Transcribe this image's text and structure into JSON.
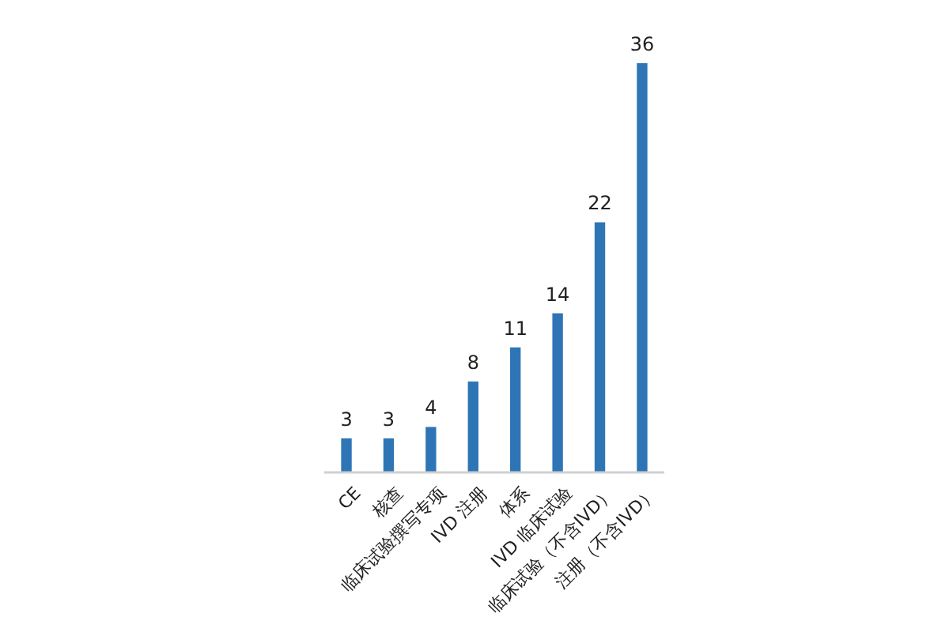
{
  "chart_data": {
    "type": "bar",
    "categories": [
      "CE",
      "核查",
      "临床试验撰写专项",
      "IVD 注册",
      "体系",
      "IVD 临床试验",
      "临床试验（不含IVD）",
      "注册（不含IVD）"
    ],
    "values": [
      3,
      3,
      4,
      8,
      11,
      14,
      22,
      36
    ],
    "color": "#2e75b6",
    "data_labels": true
  }
}
